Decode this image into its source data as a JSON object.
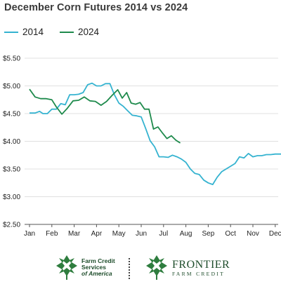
{
  "chart_data": {
    "type": "line",
    "title": "December Corn Futures 2014 vs 2024",
    "xlabel": "",
    "ylabel": "",
    "ylim": [
      2.5,
      5.5
    ],
    "y_ticks": [
      "$5.50",
      "$5.00",
      "$4.50",
      "$4.00",
      "$3.50",
      "$3.00",
      "$2.50"
    ],
    "y_tick_values": [
      5.5,
      5.0,
      4.5,
      4.0,
      3.5,
      3.0,
      2.5
    ],
    "x_ticks": [
      "Jan",
      "Feb",
      "Mar",
      "Apr",
      "May",
      "Jun",
      "Jul",
      "Aug",
      "Sep",
      "Oct",
      "Nov",
      "Dec"
    ],
    "xlim": [
      0,
      11.5
    ],
    "grid": "horizontal",
    "legend": "top-left",
    "series": [
      {
        "name": "2014",
        "color": "#35b3d0",
        "x": [
          0,
          0.25,
          0.45,
          0.6,
          0.8,
          1.0,
          1.2,
          1.4,
          1.6,
          1.8,
          2.0,
          2.2,
          2.4,
          2.6,
          2.8,
          3.0,
          3.2,
          3.4,
          3.6,
          3.8,
          4.0,
          4.2,
          4.4,
          4.6,
          4.8,
          5.0,
          5.2,
          5.4,
          5.6,
          5.8,
          6.0,
          6.2,
          6.4,
          6.6,
          6.8,
          7.0,
          7.2,
          7.4,
          7.6,
          7.8,
          8.0,
          8.2,
          8.4,
          8.6,
          8.8,
          9.0,
          9.2,
          9.4,
          9.6,
          9.8,
          10.0,
          10.2,
          10.4,
          10.6,
          10.8,
          11.0,
          11.2,
          11.5
        ],
        "y": [
          4.51,
          4.51,
          4.54,
          4.5,
          4.5,
          4.58,
          4.58,
          4.68,
          4.66,
          4.84,
          4.84,
          4.85,
          4.88,
          5.02,
          5.05,
          5.0,
          5.0,
          5.04,
          5.04,
          4.84,
          4.69,
          4.63,
          4.55,
          4.47,
          4.46,
          4.44,
          4.23,
          4.01,
          3.9,
          3.72,
          3.72,
          3.71,
          3.75,
          3.72,
          3.68,
          3.62,
          3.5,
          3.42,
          3.4,
          3.3,
          3.25,
          3.22,
          3.35,
          3.45,
          3.5,
          3.55,
          3.6,
          3.72,
          3.7,
          3.78,
          3.72,
          3.74,
          3.74,
          3.76,
          3.76,
          3.77,
          3.77,
          3.77
        ]
      },
      {
        "name": "2024",
        "color": "#1e8a4c",
        "x": [
          0,
          0.25,
          0.5,
          0.75,
          1.0,
          1.2,
          1.45,
          1.7,
          1.95,
          2.2,
          2.45,
          2.7,
          2.95,
          3.2,
          3.45,
          3.7,
          3.95,
          4.15,
          4.35,
          4.55,
          4.75,
          4.95,
          5.15,
          5.35,
          5.55,
          5.75,
          5.95,
          6.15,
          6.35,
          6.55,
          6.75
        ],
        "y": [
          4.94,
          4.8,
          4.77,
          4.77,
          4.75,
          4.62,
          4.49,
          4.6,
          4.73,
          4.74,
          4.8,
          4.73,
          4.72,
          4.65,
          4.72,
          4.83,
          4.93,
          4.78,
          4.88,
          4.69,
          4.67,
          4.7,
          4.58,
          4.58,
          4.22,
          4.26,
          4.15,
          4.05,
          4.1,
          4.02,
          3.97
        ]
      }
    ]
  },
  "logos": {
    "fcs_line1": "Farm Credit",
    "fcs_line2": "Services",
    "fcs_line3": "of America",
    "frontier_name": "FRONTIER",
    "frontier_sub": "FARM CREDIT"
  }
}
